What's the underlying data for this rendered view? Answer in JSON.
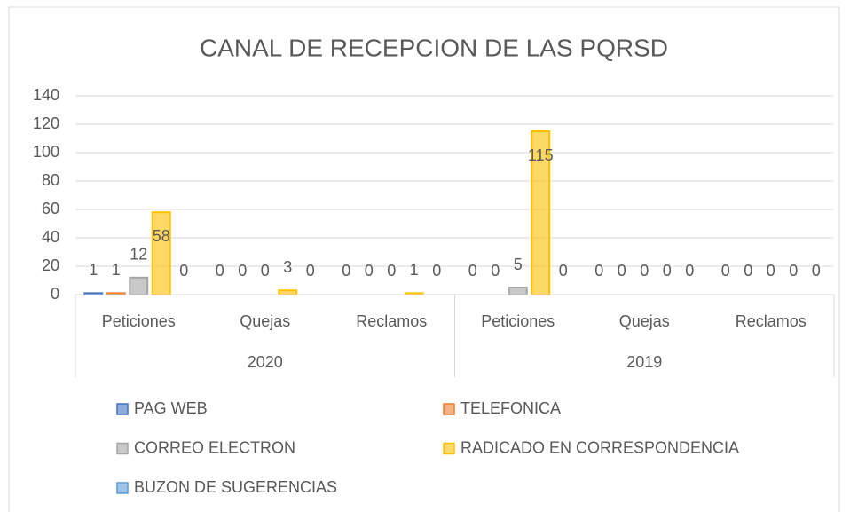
{
  "chart_data": {
    "type": "bar",
    "title": "CANAL DE RECEPCION  DE LAS PQRSD",
    "groups": [
      {
        "name": "2020",
        "categories": [
          "Peticiones",
          "Quejas",
          "Reclamos"
        ]
      },
      {
        "name": "2019",
        "categories": [
          "Peticiones",
          "Quejas",
          "Reclamos"
        ]
      }
    ],
    "series": [
      {
        "name": "PAG WEB",
        "color": "#4472c4",
        "values": [
          1,
          0,
          0,
          0,
          0,
          0
        ]
      },
      {
        "name": "TELEFONICA",
        "color": "#ed7d31",
        "values": [
          1,
          0,
          0,
          0,
          0,
          0
        ]
      },
      {
        "name": "CORREO ELECTRON",
        "color": "#a5a5a5",
        "values": [
          12,
          0,
          0,
          5,
          0,
          0
        ]
      },
      {
        "name": "RADICADO EN CORRESPONDENCIA",
        "color": "#ffc000",
        "values": [
          58,
          3,
          1,
          115,
          0,
          0
        ]
      },
      {
        "name": "BUZON DE SUGERENCIAS",
        "color": "#5b9bd5",
        "values": [
          0,
          0,
          0,
          0,
          0,
          0
        ]
      }
    ],
    "ylim": [
      0,
      140
    ],
    "yticks": [
      0,
      20,
      40,
      60,
      80,
      100,
      120,
      140
    ],
    "grid": true,
    "legend": "bottom"
  }
}
